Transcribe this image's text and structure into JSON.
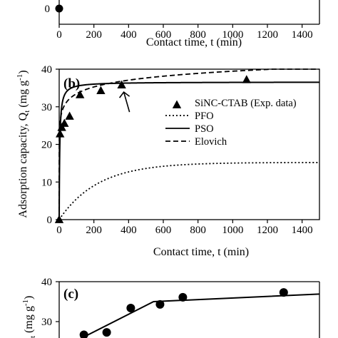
{
  "chart_data": [
    {
      "panel": "a",
      "type": "scatter",
      "visible": "bottom strip only",
      "xlabel": "Contact time, t (min)",
      "xlim": [
        0,
        1500
      ],
      "xticks": [
        0,
        200,
        400,
        600,
        800,
        1000,
        1200,
        1400
      ],
      "yticks_visible": [
        0
      ],
      "points": [
        {
          "x": 0,
          "y": 0
        }
      ]
    },
    {
      "panel": "b",
      "panel_label": "(b)",
      "type": "scatter+line",
      "xlabel": "Contact time, t (min)",
      "ylabel_main": "Adsorption capacity, Q",
      "ylabel_sub": "t",
      "ylabel_unit": " (mg g",
      "ylabel_exp": "-1",
      "ylabel_close": ")",
      "xlim": [
        0,
        1500
      ],
      "ylim": [
        0,
        40
      ],
      "xticks": [
        0,
        200,
        400,
        600,
        800,
        1000,
        1200,
        1400
      ],
      "yticks": [
        0,
        10,
        20,
        30,
        40
      ],
      "legend_position": "right-middle",
      "legend": [
        {
          "label": "SiNC-CTAB (Exp. data)",
          "style": "triangle"
        },
        {
          "label": "PFO",
          "style": "dotted"
        },
        {
          "label": "PSO",
          "style": "solid"
        },
        {
          "label": "Elovich",
          "style": "dashed"
        }
      ],
      "series": [
        {
          "name": "SiNC-CTAB (Exp. data)",
          "kind": "markers",
          "x": [
            0,
            5,
            15,
            30,
            60,
            120,
            240,
            360,
            1080
          ],
          "y": [
            0,
            22.8,
            24.5,
            25.6,
            27.5,
            33.2,
            34.3,
            35.8,
            37.2
          ]
        },
        {
          "name": "PFO",
          "kind": "model",
          "model": "pfo",
          "qe": 15.2,
          "k": 0.0045
        },
        {
          "name": "PSO",
          "kind": "model",
          "model": "pso",
          "qe": 36.6,
          "k": 0.0085
        },
        {
          "name": "Elovich",
          "kind": "model",
          "model": "elovich",
          "a": 21.5,
          "b": 2.6
        }
      ],
      "annotation": {
        "type": "arrow",
        "target_x": 360,
        "target_y": 35.8
      }
    },
    {
      "panel": "c",
      "panel_label": "(c)",
      "type": "scatter+line",
      "visible": "top strip only",
      "ylabel_visible": "t",
      "ylabel_unit": " (mg g",
      "ylabel_exp": "-1",
      "ylabel_close": ")",
      "ylim_visible": [
        28,
        40
      ],
      "yticks": [
        30,
        40
      ],
      "xlim": [
        0,
        40
      ],
      "series": [
        {
          "name": "markers",
          "kind": "markers",
          "x": [
            3.8,
            7.3,
            11.0,
            15.5,
            19.0,
            34.5
          ],
          "y": [
            26.7,
            27.3,
            33.4,
            34.3,
            36.1,
            37.3
          ]
        },
        {
          "name": "fit",
          "kind": "polyline",
          "x": [
            3,
            14.5,
            40
          ],
          "y": [
            25.5,
            35.0,
            36.9
          ]
        }
      ]
    }
  ]
}
